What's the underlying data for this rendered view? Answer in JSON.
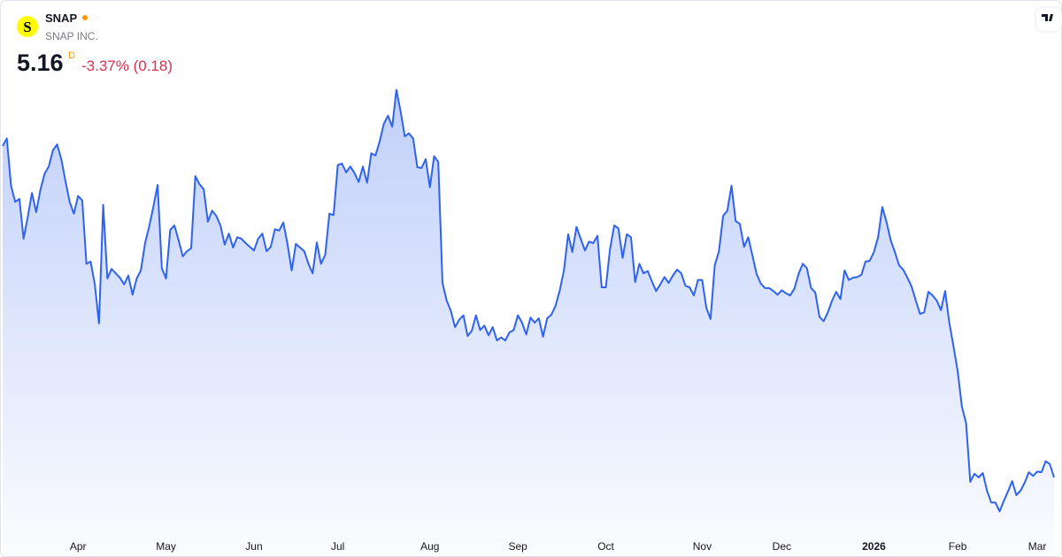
{
  "chart_data": {
    "type": "area",
    "title": "SNAP",
    "subtitle": "SNAP INC.",
    "logo": "S",
    "last_price": "5.16",
    "interval": "D",
    "change_label": "-3.37% (0.18)",
    "color": "#2f62ee",
    "ylim": [
      4.44,
      10.56
    ],
    "categories": [
      null,
      null,
      null,
      null,
      null,
      null,
      null,
      null,
      null,
      null,
      null,
      null,
      null,
      null,
      null,
      null,
      null,
      null,
      "Apr",
      null,
      null,
      null,
      null,
      null,
      null,
      null,
      null,
      null,
      null,
      null,
      null,
      null,
      null,
      null,
      null,
      null,
      null,
      null,
      null,
      "May",
      null,
      null,
      null,
      null,
      null,
      null,
      null,
      null,
      null,
      null,
      null,
      null,
      null,
      null,
      null,
      null,
      null,
      null,
      null,
      null,
      "Jun",
      null,
      null,
      null,
      null,
      null,
      null,
      null,
      null,
      null,
      null,
      null,
      null,
      null,
      null,
      null,
      null,
      null,
      null,
      null,
      "Jul",
      null,
      null,
      null,
      null,
      null,
      null,
      null,
      null,
      null,
      null,
      null,
      null,
      null,
      null,
      null,
      null,
      null,
      null,
      null,
      null,
      null,
      "Aug",
      null,
      null,
      null,
      null,
      null,
      null,
      null,
      null,
      null,
      null,
      null,
      null,
      null,
      null,
      null,
      null,
      null,
      null,
      null,
      null,
      "Sep",
      null,
      null,
      null,
      null,
      null,
      null,
      null,
      null,
      null,
      null,
      null,
      null,
      null,
      null,
      null,
      null,
      null,
      null,
      null,
      null,
      "Oct",
      null,
      null,
      null,
      null,
      null,
      null,
      null,
      null,
      null,
      null,
      null,
      null,
      null,
      null,
      null,
      null,
      null,
      null,
      null,
      null,
      null,
      null,
      "Nov",
      null,
      null,
      null,
      null,
      null,
      null,
      null,
      null,
      null,
      null,
      null,
      null,
      null,
      null,
      null,
      null,
      null,
      null,
      "Dec",
      null,
      null,
      null,
      null,
      null,
      null,
      null,
      null,
      null,
      null,
      null,
      null,
      null,
      null,
      null,
      null,
      null,
      null,
      null,
      null,
      null,
      "2026",
      null,
      null,
      null,
      null,
      null,
      null,
      null,
      null,
      null,
      null,
      null,
      null,
      null,
      null,
      null,
      null,
      null,
      null,
      null,
      "Feb",
      null,
      null,
      null,
      null,
      null,
      null,
      null,
      null,
      null,
      null,
      null,
      null,
      null,
      null,
      null,
      null,
      null,
      null,
      "Mar",
      null,
      null,
      null,
      null
    ],
    "values": [
      9.66,
      9.76,
      9.12,
      8.9,
      8.94,
      8.4,
      8.7,
      9.02,
      8.76,
      9.06,
      9.28,
      9.38,
      9.6,
      9.68,
      9.48,
      9.18,
      8.9,
      8.74,
      8.98,
      8.92,
      8.06,
      8.09,
      7.78,
      7.25,
      8.86,
      7.86,
      7.99,
      7.93,
      7.87,
      7.78,
      7.9,
      7.64,
      7.86,
      7.97,
      8.34,
      8.57,
      8.84,
      9.13,
      8.0,
      7.86,
      8.52,
      8.58,
      8.38,
      8.16,
      8.23,
      8.27,
      9.25,
      9.14,
      9.07,
      8.63,
      8.78,
      8.71,
      8.58,
      8.32,
      8.47,
      8.28,
      8.42,
      8.4,
      8.34,
      8.29,
      8.24,
      8.4,
      8.47,
      8.23,
      8.29,
      8.53,
      8.51,
      8.62,
      8.33,
      7.97,
      8.33,
      8.28,
      8.23,
      8.06,
      7.93,
      8.35,
      8.06,
      8.18,
      8.74,
      8.72,
      9.4,
      9.42,
      9.3,
      9.38,
      9.29,
      9.17,
      9.38,
      9.16,
      9.56,
      9.53,
      9.72,
      9.96,
      10.07,
      9.92,
      10.42,
      10.13,
      9.79,
      9.83,
      9.76,
      9.37,
      9.36,
      9.48,
      9.1,
      9.52,
      9.44,
      7.8,
      7.56,
      7.42,
      7.2,
      7.3,
      7.36,
      7.08,
      7.15,
      7.36,
      7.16,
      7.22,
      7.09,
      7.2,
      7.02,
      7.06,
      7.02,
      7.13,
      7.16,
      7.36,
      7.26,
      7.1,
      7.33,
      7.26,
      7.32,
      7.07,
      7.32,
      7.37,
      7.49,
      7.7,
      7.97,
      8.46,
      8.22,
      8.56,
      8.4,
      8.24,
      8.36,
      8.34,
      8.44,
      7.74,
      7.74,
      8.26,
      8.58,
      8.54,
      8.14,
      8.46,
      8.42,
      7.81,
      8.06,
      7.93,
      7.96,
      7.82,
      7.69,
      7.78,
      7.88,
      7.8,
      7.9,
      7.98,
      7.93,
      7.76,
      7.74,
      7.63,
      7.84,
      7.84,
      7.46,
      7.31,
      8.04,
      8.23,
      8.71,
      8.78,
      9.12,
      8.64,
      8.6,
      8.29,
      8.42,
      8.17,
      7.92,
      7.79,
      7.73,
      7.73,
      7.69,
      7.64,
      7.7,
      7.66,
      7.63,
      7.72,
      7.92,
      8.06,
      8.0,
      7.73,
      7.67,
      7.34,
      7.28,
      7.4,
      7.56,
      7.68,
      7.58,
      7.97,
      7.84,
      7.87,
      7.88,
      7.91,
      8.09,
      8.1,
      8.22,
      8.42,
      8.83,
      8.63,
      8.38,
      8.22,
      8.04,
      7.98,
      7.87,
      7.75,
      7.56,
      7.38,
      7.4,
      7.68,
      7.63,
      7.56,
      7.43,
      7.69,
      7.26,
      6.94,
      6.6,
      6.12,
      5.9,
      5.1,
      5.21,
      5.16,
      5.22,
      4.98,
      4.82,
      4.82,
      4.7,
      4.84,
      4.97,
      5.11,
      4.92,
      4.98,
      5.09,
      5.23,
      5.18,
      5.24,
      5.23,
      5.38,
      5.34,
      5.16
    ]
  }
}
